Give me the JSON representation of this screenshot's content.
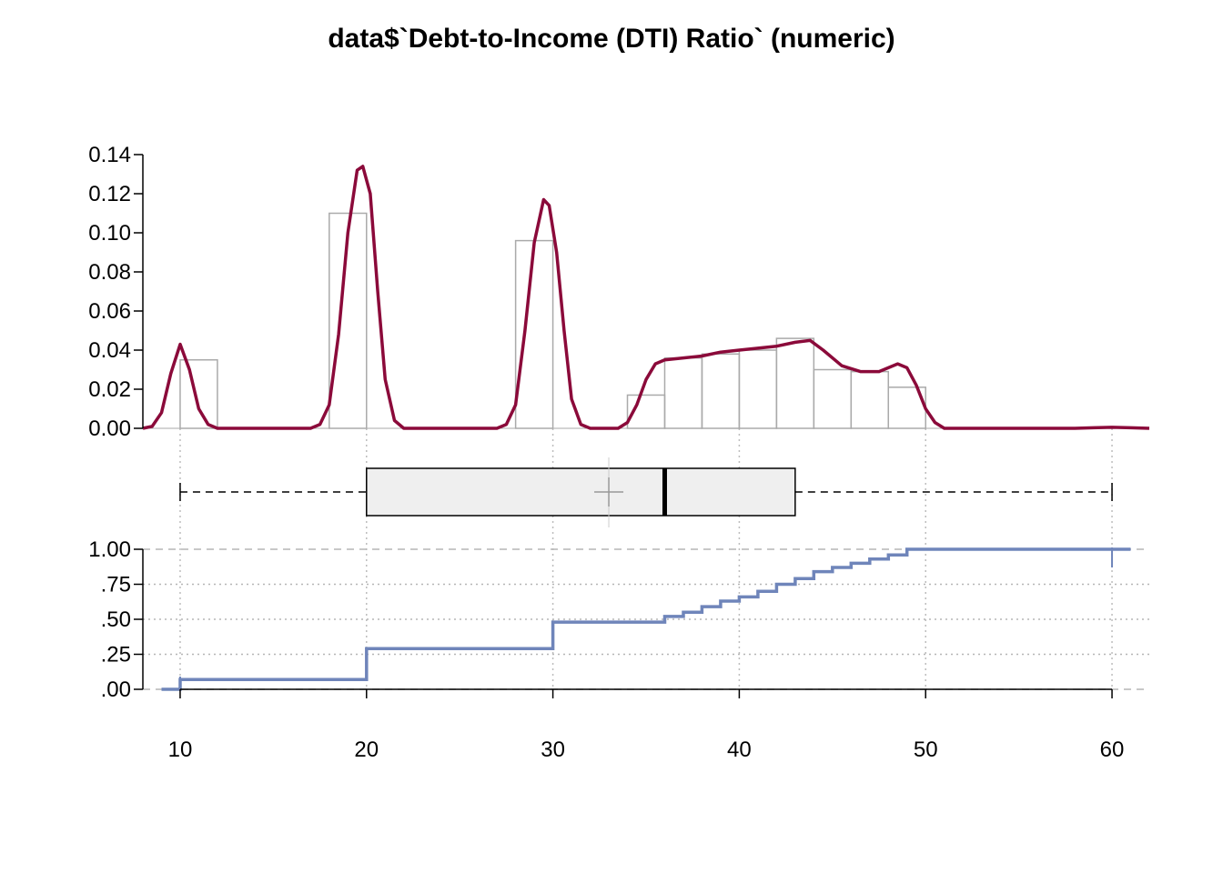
{
  "chart_data": {
    "title": "data$`Debt-to-Income (DTI) Ratio` (numeric)",
    "x_axis": {
      "range": [
        8,
        62
      ],
      "ticks": [
        10,
        20,
        30,
        40,
        50,
        60
      ]
    },
    "histogram": {
      "type": "bar",
      "ylim": [
        0,
        0.14
      ],
      "y_ticks": [
        0.0,
        0.02,
        0.04,
        0.06,
        0.08,
        0.1,
        0.12,
        0.14
      ],
      "y_tick_labels": [
        "0.00",
        "0.02",
        "0.04",
        "0.06",
        "0.08",
        "0.10",
        "0.12",
        "0.14"
      ],
      "bins": [
        {
          "x0": 10,
          "x1": 12,
          "density": 0.035
        },
        {
          "x0": 18,
          "x1": 20,
          "density": 0.11
        },
        {
          "x0": 28,
          "x1": 30,
          "density": 0.096
        },
        {
          "x0": 34,
          "x1": 36,
          "density": 0.017
        },
        {
          "x0": 36,
          "x1": 38,
          "density": 0.036
        },
        {
          "x0": 38,
          "x1": 40,
          "density": 0.038
        },
        {
          "x0": 40,
          "x1": 42,
          "density": 0.04
        },
        {
          "x0": 42,
          "x1": 44,
          "density": 0.046
        },
        {
          "x0": 44,
          "x1": 46,
          "density": 0.03
        },
        {
          "x0": 46,
          "x1": 48,
          "density": 0.029
        },
        {
          "x0": 48,
          "x1": 50,
          "density": 0.021
        }
      ],
      "bar_color": "#aaaaaa"
    },
    "density": {
      "type": "line",
      "color": "#8b0a3a",
      "points": [
        [
          8,
          0.0
        ],
        [
          8.5,
          0.001
        ],
        [
          9,
          0.008
        ],
        [
          9.5,
          0.028
        ],
        [
          10,
          0.043
        ],
        [
          10.5,
          0.03
        ],
        [
          11,
          0.01
        ],
        [
          11.5,
          0.002
        ],
        [
          12,
          0.0
        ],
        [
          17,
          0.0
        ],
        [
          17.5,
          0.002
        ],
        [
          18,
          0.012
        ],
        [
          18.5,
          0.048
        ],
        [
          19,
          0.1
        ],
        [
          19.5,
          0.132
        ],
        [
          19.8,
          0.134
        ],
        [
          20.2,
          0.12
        ],
        [
          20.6,
          0.07
        ],
        [
          21,
          0.025
        ],
        [
          21.5,
          0.004
        ],
        [
          22,
          0.0
        ],
        [
          27,
          0.0
        ],
        [
          27.5,
          0.002
        ],
        [
          28,
          0.012
        ],
        [
          28.5,
          0.05
        ],
        [
          29,
          0.095
        ],
        [
          29.5,
          0.117
        ],
        [
          29.8,
          0.114
        ],
        [
          30.2,
          0.09
        ],
        [
          30.6,
          0.05
        ],
        [
          31,
          0.015
        ],
        [
          31.5,
          0.002
        ],
        [
          32,
          0.0
        ],
        [
          33.5,
          0.0
        ],
        [
          34,
          0.003
        ],
        [
          34.5,
          0.012
        ],
        [
          35,
          0.025
        ],
        [
          35.5,
          0.033
        ],
        [
          36,
          0.035
        ],
        [
          37,
          0.036
        ],
        [
          38,
          0.037
        ],
        [
          39,
          0.039
        ],
        [
          40,
          0.04
        ],
        [
          41,
          0.041
        ],
        [
          42,
          0.042
        ],
        [
          43,
          0.044
        ],
        [
          43.8,
          0.045
        ],
        [
          44.5,
          0.04
        ],
        [
          45.5,
          0.032
        ],
        [
          46.5,
          0.029
        ],
        [
          47.5,
          0.029
        ],
        [
          48.5,
          0.033
        ],
        [
          49,
          0.031
        ],
        [
          49.5,
          0.022
        ],
        [
          50,
          0.01
        ],
        [
          50.5,
          0.003
        ],
        [
          51,
          0.0
        ],
        [
          58,
          0.0
        ],
        [
          59,
          0.0003
        ],
        [
          60,
          0.0005
        ],
        [
          61,
          0.0003
        ],
        [
          62,
          0.0
        ]
      ]
    },
    "boxplot": {
      "min": 10,
      "q1": 20,
      "median": 36,
      "mean": 33,
      "q3": 43,
      "max": 60,
      "fill": "#efefef"
    },
    "ecdf": {
      "type": "line",
      "color": "#6f85ba",
      "ylim": [
        0,
        1
      ],
      "y_ticks": [
        0.0,
        0.25,
        0.5,
        0.75,
        1.0
      ],
      "y_tick_labels": [
        ".00",
        ".25",
        ".50",
        ".75",
        "1.00"
      ],
      "steps": [
        [
          10,
          0.07
        ],
        [
          20,
          0.29
        ],
        [
          30,
          0.48
        ],
        [
          36,
          0.52
        ],
        [
          37,
          0.55
        ],
        [
          38,
          0.59
        ],
        [
          39,
          0.63
        ],
        [
          40,
          0.66
        ],
        [
          41,
          0.7
        ],
        [
          42,
          0.75
        ],
        [
          43,
          0.79
        ],
        [
          44,
          0.84
        ],
        [
          45,
          0.87
        ],
        [
          46,
          0.9
        ],
        [
          47,
          0.93
        ],
        [
          48,
          0.96
        ],
        [
          49,
          1.0
        ],
        [
          60,
          1.0
        ]
      ]
    }
  }
}
